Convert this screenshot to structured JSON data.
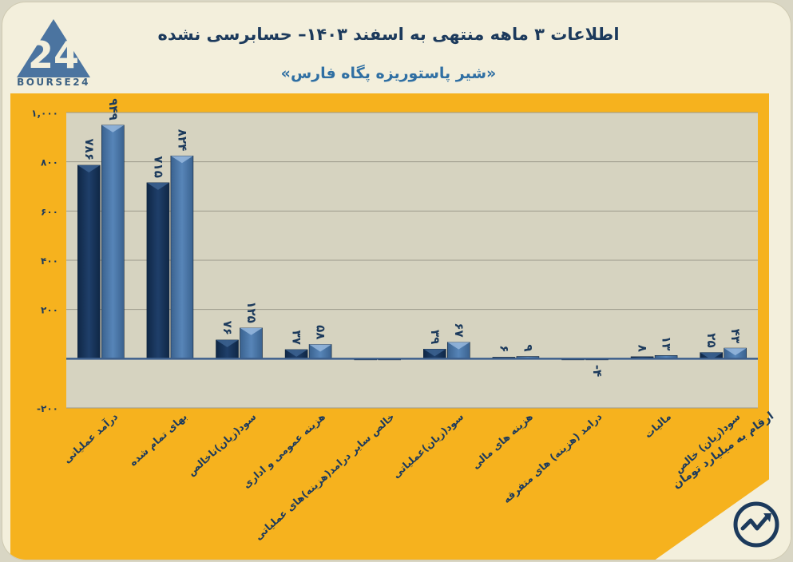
{
  "header": {
    "title": "اطلاعات ۳ ماهه منتهی به اسفند ۱۴۰۳– حسابرسی نشده",
    "subtitle": "«شیر پاستوریزه پگاه فارس»",
    "logo_text": "BOURSE24",
    "logo_mark": "24"
  },
  "unit_note": "ارقام به میلیارد تومان",
  "colors": {
    "panel": "#f6b21e",
    "plot_bg": "#d6d3c0",
    "series_a": "#1f3f6a",
    "series_b": "#5785b8",
    "baseline": "#3d5f8c"
  },
  "chart_data": {
    "type": "bar",
    "categories": [
      "درآمد عملیاتی",
      "بهای تمام شده",
      "سود(زیان)ناخالص",
      "هزینه عمومی و اداری",
      "خالص سایر درامد(هزینه)های عملیاتی",
      "سود(زیان)عملیاتی",
      "هزینه های مالی",
      "درامد (هزینه) های متفرقه",
      "مالیات",
      "سود(زیان) خالص"
    ],
    "series": [
      {
        "values": [
          786,
          715,
          76,
          37,
          0,
          39,
          6,
          0,
          8,
          25
        ],
        "labels": [
          "۷۸۶",
          "۷۱۵",
          "۷۶",
          "۳۷",
          "",
          "۳۹",
          "۶",
          "",
          "۸",
          "۲۵"
        ]
      },
      {
        "values": [
          949,
          824,
          125,
          58,
          0,
          67,
          9,
          -4,
          13,
          43
        ],
        "labels": [
          "۹۴۹",
          "۸۲۴",
          "۱۲۵",
          "۵۸",
          "",
          "۶۷",
          "۹",
          "-۴",
          "۱۳",
          "۴۳"
        ]
      }
    ],
    "y_ticks": [
      -200,
      0,
      200,
      400,
      600,
      800,
      1000
    ],
    "y_tick_labels": [
      "-۲۰۰",
      "",
      "۲۰۰",
      "۴۰۰",
      "۶۰۰",
      "۸۰۰",
      "۱,۰۰۰"
    ],
    "ylim": [
      -200,
      1000
    ],
    "grid": true,
    "legend": "none"
  }
}
